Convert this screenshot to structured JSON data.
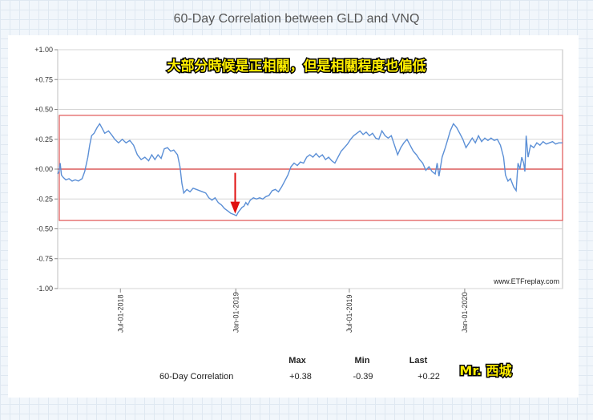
{
  "title": "60-Day Correlation between GLD and VNQ",
  "annotation": "大部分時候是正相關，但是相關程度也偏低",
  "watermark": "www.ETFreplay.com",
  "author": "Mr. 西城",
  "colors": {
    "line": "#5b8fd6",
    "zero_line": "#d33a3a",
    "band": "#e05555",
    "arrow": "#e01010",
    "grid": "#d6d6d6"
  },
  "stats": {
    "row_label": "60-Day Correlation",
    "headers": [
      "Max",
      "Min",
      "Last"
    ],
    "values": [
      "+0.38",
      "-0.39",
      "+0.22"
    ]
  },
  "chart_data": {
    "type": "line",
    "title": "60-Day Correlation between GLD and VNQ",
    "xlabel": "",
    "ylabel": "",
    "x_range": [
      "2018-03-23",
      "2020-06-05"
    ],
    "ylim": [
      -1.0,
      1.0
    ],
    "y_ticks": [
      1.0,
      0.75,
      0.5,
      0.25,
      0.0,
      -0.25,
      -0.5,
      -0.75,
      -1.0
    ],
    "y_tick_labels": [
      "+1.00",
      "+0.75",
      "+0.50",
      "+0.25",
      "+0.00",
      "-0.25",
      "-0.50",
      "-0.75",
      "-1.00"
    ],
    "x_ticks": [
      {
        "date": "2018-07-01",
        "label": "Jul-01-2018"
      },
      {
        "date": "2019-01-01",
        "label": "Jan-01-2019"
      },
      {
        "date": "2019-07-01",
        "label": "Jul-01-2019"
      },
      {
        "date": "2020-01-01",
        "label": "Jan-01-2020"
      }
    ],
    "grid": true,
    "band": [
      -0.43,
      0.45
    ],
    "arrow_at": {
      "date": "2018-12-31",
      "value": -0.38
    },
    "series": [
      {
        "points": [
          [
            "2018-03-23",
            -0.04
          ],
          [
            "2018-03-25",
            -0.02
          ],
          [
            "2018-03-27",
            0.05
          ],
          [
            "2018-03-29",
            -0.05
          ],
          [
            "2018-04-01",
            -0.07
          ],
          [
            "2018-04-05",
            -0.09
          ],
          [
            "2018-04-10",
            -0.08
          ],
          [
            "2018-04-15",
            -0.1
          ],
          [
            "2018-04-20",
            -0.09
          ],
          [
            "2018-04-25",
            -0.1
          ],
          [
            "2018-05-01",
            -0.08
          ],
          [
            "2018-05-05",
            -0.02
          ],
          [
            "2018-05-10",
            0.1
          ],
          [
            "2018-05-13",
            0.2
          ],
          [
            "2018-05-16",
            0.28
          ],
          [
            "2018-05-20",
            0.3
          ],
          [
            "2018-05-25",
            0.35
          ],
          [
            "2018-05-29",
            0.38
          ],
          [
            "2018-06-02",
            0.34
          ],
          [
            "2018-06-06",
            0.3
          ],
          [
            "2018-06-12",
            0.32
          ],
          [
            "2018-06-18",
            0.28
          ],
          [
            "2018-06-22",
            0.25
          ],
          [
            "2018-06-28",
            0.22
          ],
          [
            "2018-07-04",
            0.25
          ],
          [
            "2018-07-10",
            0.22
          ],
          [
            "2018-07-16",
            0.24
          ],
          [
            "2018-07-22",
            0.2
          ],
          [
            "2018-07-28",
            0.12
          ],
          [
            "2018-08-03",
            0.08
          ],
          [
            "2018-08-09",
            0.1
          ],
          [
            "2018-08-15",
            0.07
          ],
          [
            "2018-08-20",
            0.12
          ],
          [
            "2018-08-25",
            0.08
          ],
          [
            "2018-08-30",
            0.12
          ],
          [
            "2018-09-04",
            0.09
          ],
          [
            "2018-09-09",
            0.17
          ],
          [
            "2018-09-14",
            0.18
          ],
          [
            "2018-09-19",
            0.15
          ],
          [
            "2018-09-24",
            0.16
          ],
          [
            "2018-09-30",
            0.12
          ],
          [
            "2018-10-04",
            0.02
          ],
          [
            "2018-10-07",
            -0.12
          ],
          [
            "2018-10-10",
            -0.2
          ],
          [
            "2018-10-15",
            -0.17
          ],
          [
            "2018-10-20",
            -0.19
          ],
          [
            "2018-10-25",
            -0.16
          ],
          [
            "2018-10-30",
            -0.17
          ],
          [
            "2018-11-04",
            -0.18
          ],
          [
            "2018-11-09",
            -0.19
          ],
          [
            "2018-11-14",
            -0.2
          ],
          [
            "2018-11-19",
            -0.24
          ],
          [
            "2018-11-24",
            -0.26
          ],
          [
            "2018-11-29",
            -0.24
          ],
          [
            "2018-12-04",
            -0.28
          ],
          [
            "2018-12-09",
            -0.3
          ],
          [
            "2018-12-14",
            -0.33
          ],
          [
            "2018-12-19",
            -0.35
          ],
          [
            "2018-12-24",
            -0.37
          ],
          [
            "2018-12-29",
            -0.38
          ],
          [
            "2019-01-02",
            -0.39
          ],
          [
            "2019-01-05",
            -0.36
          ],
          [
            "2019-01-08",
            -0.34
          ],
          [
            "2019-01-11",
            -0.32
          ],
          [
            "2019-01-14",
            -0.31
          ],
          [
            "2019-01-17",
            -0.28
          ],
          [
            "2019-01-20",
            -0.3
          ],
          [
            "2019-01-24",
            -0.26
          ],
          [
            "2019-01-29",
            -0.24
          ],
          [
            "2019-02-03",
            -0.25
          ],
          [
            "2019-02-08",
            -0.24
          ],
          [
            "2019-02-13",
            -0.25
          ],
          [
            "2019-02-18",
            -0.23
          ],
          [
            "2019-02-23",
            -0.22
          ],
          [
            "2019-02-28",
            -0.18
          ],
          [
            "2019-03-05",
            -0.17
          ],
          [
            "2019-03-10",
            -0.19
          ],
          [
            "2019-03-15",
            -0.15
          ],
          [
            "2019-03-20",
            -0.1
          ],
          [
            "2019-03-25",
            -0.05
          ],
          [
            "2019-03-30",
            0.02
          ],
          [
            "2019-04-04",
            0.05
          ],
          [
            "2019-04-09",
            0.03
          ],
          [
            "2019-04-14",
            0.06
          ],
          [
            "2019-04-19",
            0.05
          ],
          [
            "2019-04-24",
            0.1
          ],
          [
            "2019-04-29",
            0.12
          ],
          [
            "2019-05-04",
            0.1
          ],
          [
            "2019-05-09",
            0.13
          ],
          [
            "2019-05-14",
            0.1
          ],
          [
            "2019-05-19",
            0.12
          ],
          [
            "2019-05-24",
            0.08
          ],
          [
            "2019-05-29",
            0.1
          ],
          [
            "2019-06-03",
            0.07
          ],
          [
            "2019-06-08",
            0.05
          ],
          [
            "2019-06-13",
            0.1
          ],
          [
            "2019-06-18",
            0.15
          ],
          [
            "2019-06-23",
            0.18
          ],
          [
            "2019-06-28",
            0.21
          ],
          [
            "2019-07-03",
            0.25
          ],
          [
            "2019-07-08",
            0.28
          ],
          [
            "2019-07-13",
            0.3
          ],
          [
            "2019-07-18",
            0.32
          ],
          [
            "2019-07-23",
            0.29
          ],
          [
            "2019-07-28",
            0.31
          ],
          [
            "2019-08-02",
            0.28
          ],
          [
            "2019-08-07",
            0.3
          ],
          [
            "2019-08-12",
            0.26
          ],
          [
            "2019-08-17",
            0.25
          ],
          [
            "2019-08-22",
            0.32
          ],
          [
            "2019-08-27",
            0.28
          ],
          [
            "2019-09-01",
            0.26
          ],
          [
            "2019-09-06",
            0.28
          ],
          [
            "2019-09-11",
            0.2
          ],
          [
            "2019-09-16",
            0.12
          ],
          [
            "2019-09-21",
            0.18
          ],
          [
            "2019-09-26",
            0.22
          ],
          [
            "2019-10-01",
            0.25
          ],
          [
            "2019-10-06",
            0.2
          ],
          [
            "2019-10-11",
            0.15
          ],
          [
            "2019-10-16",
            0.12
          ],
          [
            "2019-10-21",
            0.08
          ],
          [
            "2019-10-26",
            0.05
          ],
          [
            "2019-10-31",
            -0.01
          ],
          [
            "2019-11-05",
            0.02
          ],
          [
            "2019-11-10",
            -0.02
          ],
          [
            "2019-11-15",
            -0.04
          ],
          [
            "2019-11-18",
            0.05
          ],
          [
            "2019-11-21",
            -0.06
          ],
          [
            "2019-11-26",
            0.1
          ],
          [
            "2019-12-01",
            0.18
          ],
          [
            "2019-12-05",
            0.25
          ],
          [
            "2019-12-09",
            0.32
          ],
          [
            "2019-12-14",
            0.38
          ],
          [
            "2019-12-19",
            0.35
          ],
          [
            "2019-12-24",
            0.3
          ],
          [
            "2019-12-29",
            0.25
          ],
          [
            "2020-01-03",
            0.18
          ],
          [
            "2020-01-08",
            0.22
          ],
          [
            "2020-01-13",
            0.26
          ],
          [
            "2020-01-18",
            0.22
          ],
          [
            "2020-01-23",
            0.28
          ],
          [
            "2020-01-28",
            0.23
          ],
          [
            "2020-02-02",
            0.26
          ],
          [
            "2020-02-07",
            0.24
          ],
          [
            "2020-02-12",
            0.26
          ],
          [
            "2020-02-17",
            0.24
          ],
          [
            "2020-02-22",
            0.25
          ],
          [
            "2020-02-27",
            0.2
          ],
          [
            "2020-03-03",
            0.1
          ],
          [
            "2020-03-06",
            -0.05
          ],
          [
            "2020-03-10",
            -0.1
          ],
          [
            "2020-03-14",
            -0.08
          ],
          [
            "2020-03-19",
            -0.15
          ],
          [
            "2020-03-23",
            -0.18
          ],
          [
            "2020-03-26",
            0.05
          ],
          [
            "2020-03-29",
            0.0
          ],
          [
            "2020-04-01",
            0.1
          ],
          [
            "2020-04-04",
            0.05
          ],
          [
            "2020-04-06",
            -0.02
          ],
          [
            "2020-04-08",
            0.28
          ],
          [
            "2020-04-11",
            0.1
          ],
          [
            "2020-04-15",
            0.2
          ],
          [
            "2020-04-20",
            0.18
          ],
          [
            "2020-04-25",
            0.22
          ],
          [
            "2020-04-30",
            0.2
          ],
          [
            "2020-05-05",
            0.23
          ],
          [
            "2020-05-10",
            0.21
          ],
          [
            "2020-05-15",
            0.22
          ],
          [
            "2020-05-20",
            0.23
          ],
          [
            "2020-05-25",
            0.21
          ],
          [
            "2020-05-30",
            0.22
          ],
          [
            "2020-06-05",
            0.22
          ]
        ]
      }
    ]
  }
}
